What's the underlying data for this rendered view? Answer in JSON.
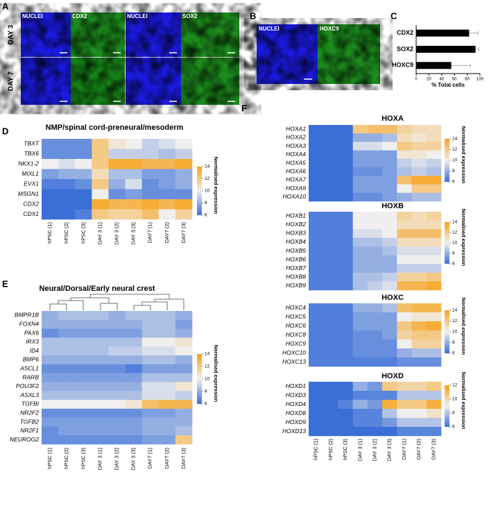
{
  "panel_labels": [
    "A",
    "B",
    "C",
    "D",
    "E",
    "F"
  ],
  "panel_a": {
    "channels": [
      "NUCLEI",
      "CDX2",
      "NUCLEI",
      "SOX2"
    ],
    "rows": [
      "DAY 3",
      "DAY 7"
    ]
  },
  "panel_b": {
    "channels": [
      "NUCLEI",
      "HOXC9"
    ]
  },
  "chart_data": [
    {
      "type": "hbar",
      "categories": [
        "CDX2",
        "SOX2",
        "HOXC9"
      ],
      "values": [
        83,
        93,
        55
      ],
      "errors": [
        14,
        5,
        30
      ],
      "color": "#000000",
      "xlim": [
        0,
        100
      ],
      "xticks": [
        0,
        20,
        40,
        60,
        80,
        100
      ],
      "xlabel": "% Total cells"
    },
    {
      "type": "heatmap",
      "title": "NMP/spinal cord-preneural/mesoderm",
      "rows": [
        "TBXT",
        "TBX6",
        "NKX1-2",
        "MIXL1",
        "EVX1",
        "MSGN1",
        "CDX2",
        "CDX1"
      ],
      "columns": [
        "hPSC (1)",
        "hPSC (2)",
        "hPSC (3)",
        "DAY 3 (1)",
        "DAY 3 (2)",
        "DAY 3 (3)",
        "DAY7 (1)",
        "DAY7 (2)",
        "DAY7 (3)"
      ],
      "values": [
        [
          7,
          7,
          7,
          12,
          10.5,
          10,
          9,
          9.5,
          10
        ],
        [
          7,
          7,
          7,
          12,
          9,
          9,
          9,
          8.5,
          9
        ],
        [
          10,
          9.5,
          10,
          12,
          13.5,
          13.5,
          13,
          13,
          13.5
        ],
        [
          7.5,
          8,
          8,
          11,
          8.5,
          8.5,
          7.5,
          7.5,
          8
        ],
        [
          6.5,
          6.5,
          7,
          12,
          8,
          9.5,
          7,
          7.5,
          8
        ],
        [
          6,
          6,
          6,
          10,
          7,
          7.5,
          7,
          7,
          7
        ],
        [
          6,
          6,
          6,
          13.5,
          13,
          13,
          13.5,
          13,
          13.5
        ],
        [
          6,
          6,
          6.5,
          12,
          11.5,
          11.5,
          12.5,
          10,
          11.5
        ]
      ],
      "clim": [
        6,
        14
      ],
      "cticks": [
        6,
        8,
        10,
        12,
        14
      ],
      "colors": [
        "#3a6fd8",
        "#f0efed",
        "#f7a21b"
      ],
      "colorbar_label": "Normalised expression"
    },
    {
      "type": "heatmap",
      "title": "Neural/Dorsal/Early neural crest",
      "rows": [
        "BMPR1B",
        "FOXN4",
        "PAX6",
        "IRX3",
        "ID4",
        "BMP6",
        "ASCL1",
        "RARB",
        "POU3F2",
        "ASXL3",
        "TGFBI",
        "NR2F2",
        "TGFB2",
        "NR2F1",
        "NEUROG2"
      ],
      "columns": [
        "hPSC (1)",
        "hPSC (2)",
        "hPSC (3)",
        "DAY 3 (1)",
        "DAY 3 (2)",
        "DAY 3 (3)",
        "DAY7 (1)",
        "DAY7 (2)",
        "DAY7 (3)"
      ],
      "values": [
        [
          8,
          8.5,
          8.5,
          8.5,
          8,
          8.5,
          8.5,
          8.5,
          8
        ],
        [
          8,
          8,
          8,
          8,
          8,
          8,
          8.5,
          8.5,
          7.5
        ],
        [
          7,
          7.5,
          7.5,
          7.5,
          7.5,
          7.5,
          8.5,
          8.5,
          8
        ],
        [
          8.5,
          8.5,
          8.5,
          8.5,
          8.5,
          8.5,
          10,
          10,
          10.5
        ],
        [
          8.5,
          8.5,
          8.5,
          8.5,
          9,
          9,
          9.5,
          9.5,
          10
        ],
        [
          8,
          8,
          8,
          8,
          8,
          8,
          8.5,
          8.5,
          8
        ],
        [
          7,
          7,
          7,
          7,
          7,
          6.5,
          7.5,
          7.5,
          7.5
        ],
        [
          7.5,
          7.5,
          7.5,
          7.5,
          7.5,
          7.5,
          8.5,
          8.5,
          8.5
        ],
        [
          8,
          8,
          8,
          8,
          8,
          8,
          9.5,
          9.5,
          10.5
        ],
        [
          8.5,
          8.5,
          8.5,
          8.5,
          8.5,
          8.5,
          9.5,
          9.5,
          9
        ],
        [
          10,
          10,
          10,
          10,
          10,
          10.5,
          12.5,
          13,
          13
        ],
        [
          7,
          7,
          7,
          7,
          7,
          7,
          7.5,
          7.5,
          8
        ],
        [
          7.5,
          7.5,
          7.5,
          7.5,
          7.5,
          7.5,
          8,
          8,
          8
        ],
        [
          7,
          7.5,
          7.5,
          7.5,
          7.5,
          7.5,
          8,
          8,
          8.5
        ],
        [
          7,
          7,
          7,
          7,
          7,
          7,
          7.5,
          7.5,
          12
        ]
      ],
      "clim": [
        6,
        14
      ],
      "cticks": [
        6,
        8,
        10,
        12,
        14
      ],
      "colors": [
        "#3a6fd8",
        "#f0efed",
        "#f7a21b"
      ],
      "colorbar_label": "Normalised expression"
    },
    {
      "type": "heatmap",
      "title": "HOXA",
      "rows": [
        "HOXA1",
        "HOXA2",
        "HOXA3",
        "HOXA4",
        "HOXA5",
        "HOXA6",
        "HOXA7",
        "HOXA9",
        "HOXA10"
      ],
      "values": [
        [
          6,
          6,
          6,
          12,
          12.5,
          12.5,
          11.5,
          11,
          11
        ],
        [
          6,
          6,
          6,
          8,
          8,
          8.5,
          11,
          10.5,
          11
        ],
        [
          6,
          6,
          6,
          9.5,
          9.5,
          10,
          12,
          11.5,
          11.5
        ],
        [
          6,
          6,
          6,
          7.5,
          7.5,
          7.5,
          10.5,
          10.5,
          10
        ],
        [
          6,
          6,
          6,
          7.5,
          7.5,
          7.5,
          9,
          9.5,
          9
        ],
        [
          6,
          6,
          6,
          7,
          7,
          7.5,
          8.5,
          9,
          8.5
        ],
        [
          6,
          6,
          6,
          7.5,
          7.5,
          7.5,
          12.5,
          13.5,
          13.5
        ],
        [
          6,
          6,
          6,
          7.5,
          7.5,
          7.5,
          10,
          12,
          12
        ],
        [
          6,
          6,
          6,
          7,
          7,
          7.5,
          8,
          8.5,
          8.5
        ]
      ],
      "clim": [
        6,
        14
      ],
      "cticks": [
        6,
        8,
        10,
        12,
        14
      ],
      "colors": [
        "#3a6fd8",
        "#f0efed",
        "#f7a21b"
      ],
      "colorbar_label": "Normalised expression"
    },
    {
      "type": "heatmap",
      "title": "HOXB",
      "rows": [
        "HOXB1",
        "HOXB2",
        "HOXB3",
        "HOXB4",
        "HOXB5",
        "HOXB6",
        "HOXB7",
        "HOXB8",
        "HOXB9"
      ],
      "values": [
        [
          6.5,
          6.5,
          6.5,
          10,
          10,
          10,
          11.5,
          11,
          11.5
        ],
        [
          6.5,
          6.5,
          6.5,
          10,
          10,
          10,
          11,
          11,
          11
        ],
        [
          6.5,
          6.5,
          6.5,
          9.5,
          9.5,
          10,
          12.5,
          12.5,
          12.5
        ],
        [
          6.5,
          6.5,
          6.5,
          8.5,
          8.5,
          9,
          11,
          11,
          11
        ],
        [
          6.5,
          6.5,
          6.5,
          8,
          8,
          8.5,
          9.5,
          9.5,
          9.5
        ],
        [
          6.5,
          6.5,
          6.5,
          8,
          8,
          8,
          10,
          10,
          10
        ],
        [
          6.5,
          6.5,
          6.5,
          8,
          8,
          8,
          9,
          9,
          9
        ],
        [
          6.5,
          6.5,
          6.5,
          8.5,
          8.5,
          9,
          11.5,
          11.5,
          12
        ],
        [
          6.5,
          6.5,
          6.5,
          8.5,
          9,
          9.5,
          13,
          13,
          13.5
        ]
      ],
      "clim": [
        6,
        14
      ],
      "cticks": [
        6,
        8,
        10,
        12,
        14
      ],
      "colors": [
        "#3a6fd8",
        "#f0efed",
        "#f7a21b"
      ],
      "colorbar_label": "Normalised expression"
    },
    {
      "type": "heatmap",
      "title": "HOXC",
      "rows": [
        "HOXC4",
        "HOXC5",
        "HOXC6",
        "HOXC8",
        "HOXC9",
        "HOXC10",
        "HOXC13"
      ],
      "values": [
        [
          6.5,
          6.5,
          6.5,
          8,
          8,
          8.5,
          12.5,
          13,
          13
        ],
        [
          6.5,
          6.5,
          6.5,
          7.5,
          7.5,
          7.5,
          10,
          10.5,
          10.5
        ],
        [
          6.5,
          6.5,
          6.5,
          7.5,
          7.5,
          7.5,
          12,
          13,
          13.5
        ],
        [
          6.5,
          6.5,
          6.5,
          7,
          7,
          7.5,
          11.5,
          12,
          12
        ],
        [
          6.5,
          6.5,
          6.5,
          7,
          7,
          7,
          10,
          11.5,
          11.5
        ],
        [
          6.5,
          6.5,
          6.5,
          7,
          7,
          7,
          8,
          8.5,
          8.5
        ],
        [
          6.5,
          6.5,
          6.5,
          6.5,
          6.5,
          6.5,
          7,
          7,
          7
        ]
      ],
      "clim": [
        6,
        14
      ],
      "cticks": [
        6,
        8,
        10,
        12,
        14
      ],
      "colors": [
        "#3a6fd8",
        "#f0efed",
        "#f7a21b"
      ],
      "colorbar_label": "Normalised expression"
    },
    {
      "type": "heatmap",
      "title": "HOXD",
      "rows": [
        "HOXD1",
        "HOXD3",
        "HOXD4",
        "HOXD8",
        "HOXD9",
        "HOXD13"
      ],
      "columns": [
        "hPSC (1)",
        "hPSC (2)",
        "hPSC (3)",
        "DAY 3 (1)",
        "DAY 3 (2)",
        "DAY 3 (3)",
        "DAY7 (1)",
        "DAY7 (2)",
        "DAY7 (3)"
      ],
      "values": [
        [
          6,
          6,
          6,
          7.5,
          7,
          10.5,
          10,
          10,
          10.5
        ],
        [
          6,
          6,
          6,
          6.5,
          6.5,
          6.5,
          8,
          8,
          8
        ],
        [
          6,
          6,
          6.5,
          7.5,
          7,
          11.5,
          10.5,
          10.5,
          11.5
        ],
        [
          6,
          6,
          6,
          6.5,
          6.5,
          8,
          9,
          9,
          9.5
        ],
        [
          6,
          6,
          6,
          6.5,
          6.5,
          7,
          8,
          8,
          8
        ],
        [
          6,
          6,
          6,
          6,
          6,
          6,
          6.5,
          6.5,
          6.5
        ]
      ],
      "clim": [
        6,
        12
      ],
      "cticks": [
        6,
        8,
        10,
        12
      ],
      "colors": [
        "#3a6fd8",
        "#f0efed",
        "#f7a21b"
      ],
      "colorbar_label": "Normalised expression"
    }
  ]
}
